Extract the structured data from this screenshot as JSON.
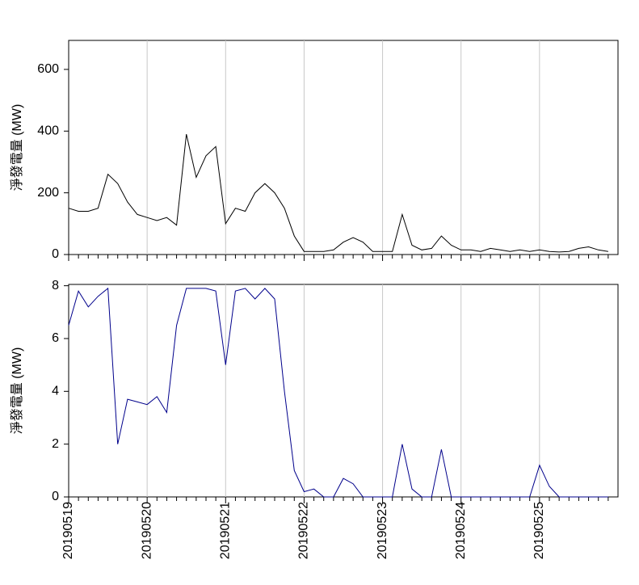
{
  "chart_data": [
    {
      "type": "line",
      "y_label": "淨發電量 (MW)",
      "categories": [
        "20190519",
        null,
        null,
        null,
        null,
        null,
        null,
        null,
        "20190520",
        null,
        null,
        null,
        null,
        null,
        null,
        null,
        "20190521",
        null,
        null,
        null,
        null,
        null,
        null,
        null,
        "20190522",
        null,
        null,
        null,
        null,
        null,
        null,
        null,
        "20190523",
        null,
        null,
        null,
        null,
        null,
        null,
        null,
        "20190524",
        null,
        null,
        null,
        null,
        null,
        null,
        null,
        "20190525",
        null,
        null,
        null,
        null,
        null,
        null,
        null
      ],
      "series": [
        {
          "name": "淨發電量",
          "color": "#000000",
          "values": [
            150,
            140,
            140,
            150,
            260,
            230,
            170,
            130,
            120,
            110,
            120,
            95,
            390,
            250,
            320,
            350,
            100,
            150,
            140,
            200,
            230,
            200,
            150,
            60,
            10,
            10,
            10,
            15,
            40,
            55,
            40,
            10,
            10,
            10,
            130,
            30,
            15,
            20,
            60,
            30,
            15,
            15,
            10,
            20,
            15,
            10,
            15,
            10,
            15,
            10,
            8,
            10,
            20,
            25,
            15,
            10
          ]
        }
      ],
      "ylim": [
        0,
        694
      ],
      "yticks": [
        0,
        200,
        400,
        600
      ],
      "grid": true
    },
    {
      "type": "line",
      "y_label": "淨發電量 (MW)",
      "categories": [
        "20190519",
        null,
        null,
        null,
        null,
        null,
        null,
        null,
        "20190520",
        null,
        null,
        null,
        null,
        null,
        null,
        null,
        "20190521",
        null,
        null,
        null,
        null,
        null,
        null,
        null,
        "20190522",
        null,
        null,
        null,
        null,
        null,
        null,
        null,
        "20190523",
        null,
        null,
        null,
        null,
        null,
        null,
        null,
        "20190524",
        null,
        null,
        null,
        null,
        null,
        null,
        null,
        "20190525",
        null,
        null,
        null,
        null,
        null,
        null,
        null
      ],
      "series": [
        {
          "name": "淨發電量",
          "color": "#00008b",
          "values": [
            6.5,
            7.8,
            7.2,
            7.6,
            7.9,
            2.0,
            3.7,
            3.6,
            3.5,
            3.8,
            3.2,
            6.5,
            7.9,
            7.9,
            7.9,
            7.8,
            5.0,
            7.8,
            7.9,
            7.5,
            7.9,
            7.5,
            4.0,
            1.0,
            0.2,
            0.3,
            0,
            0,
            0.7,
            0.5,
            0,
            0,
            0,
            0,
            2.0,
            0.3,
            0,
            0,
            1.8,
            0,
            0,
            0,
            0,
            0,
            0,
            0,
            0,
            0,
            1.2,
            0.4,
            0,
            0,
            0,
            0,
            0,
            0
          ]
        }
      ],
      "ylim": [
        0,
        8.05
      ],
      "yticks": [
        0,
        2,
        4,
        6,
        8
      ],
      "grid": true
    }
  ]
}
